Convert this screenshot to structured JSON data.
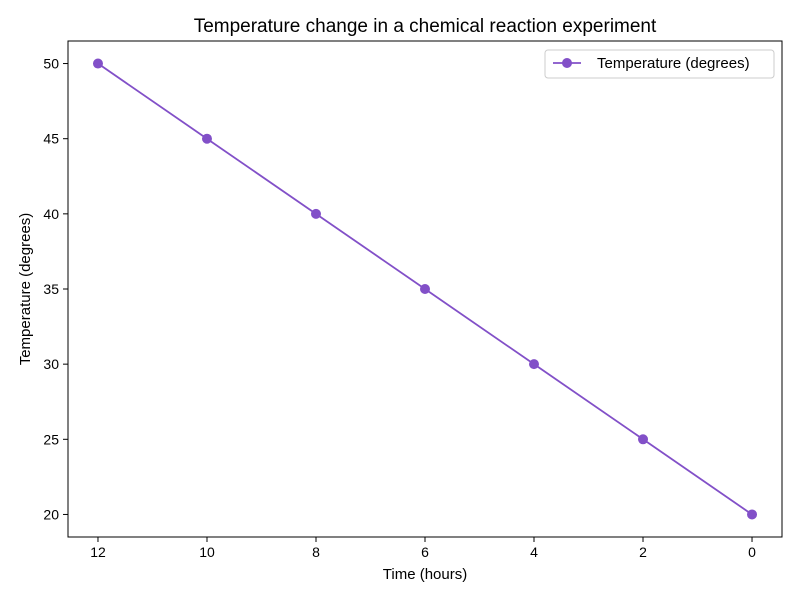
{
  "chart_data": {
    "type": "line",
    "title": "Temperature change in a chemical reaction experiment",
    "xlabel": "Time (hours)",
    "ylabel": "Temperature (degrees)",
    "x": [
      12,
      10,
      8,
      6,
      4,
      2,
      0
    ],
    "series": [
      {
        "name": "Temperature (degrees)",
        "values": [
          50,
          45,
          40,
          35,
          30,
          25,
          20
        ],
        "color": "#8250c8",
        "marker": "circle"
      }
    ],
    "xlim": [
      12.55,
      -0.55
    ],
    "ylim": [
      18.5,
      51.5
    ],
    "x_inverted": true,
    "xticks": [
      12,
      10,
      8,
      6,
      4,
      2,
      0
    ],
    "yticks": [
      20,
      25,
      30,
      35,
      40,
      45,
      50
    ],
    "grid": false,
    "legend": "top-right"
  }
}
